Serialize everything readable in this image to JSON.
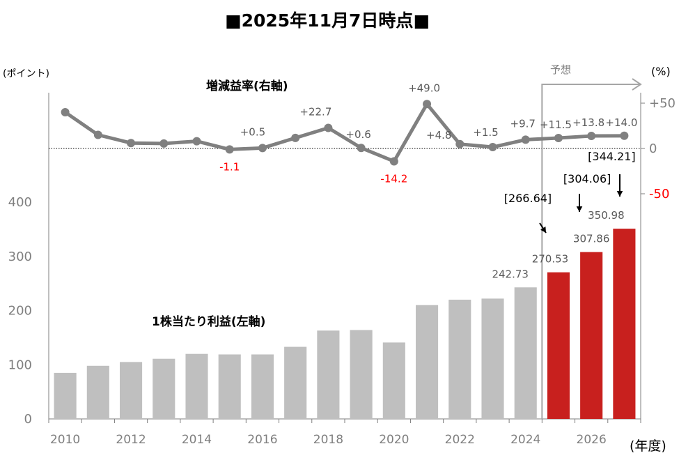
{
  "chart_data": {
    "type": "bar+line",
    "title": "■2025年11月7日時点■",
    "left_axis": {
      "unit": "(ポイント)",
      "ticks": [
        0,
        100,
        200,
        300,
        400
      ],
      "ylim": [
        0,
        400
      ]
    },
    "right_axis": {
      "unit": "(%)",
      "ticks": [
        "+50",
        "0",
        "-50"
      ],
      "ylim": [
        -50,
        50
      ]
    },
    "x_axis": {
      "unit": "(年度)",
      "tick_labels": [
        "2010",
        "2012",
        "2014",
        "2016",
        "2018",
        "2020",
        "2022",
        "2024",
        "2026"
      ]
    },
    "years": [
      2010,
      2011,
      2012,
      2013,
      2014,
      2015,
      2016,
      2017,
      2018,
      2019,
      2020,
      2021,
      2022,
      2023,
      2024,
      2025,
      2026,
      2027
    ],
    "eps_series": {
      "name": "1株当たり利益(左軸)",
      "values": [
        85,
        98,
        105,
        111,
        120,
        119,
        119,
        133,
        163,
        164,
        141,
        210,
        220,
        222,
        242.73,
        270.53,
        307.86,
        350.98
      ],
      "forecast_from": 2025
    },
    "growth_series": {
      "name": "増減益率(右軸)",
      "values": [
        40,
        15,
        6,
        5.5,
        8,
        -1.1,
        0.5,
        11.6,
        22.7,
        0.6,
        -14.2,
        49.0,
        4.8,
        1.5,
        9.7,
        11.5,
        13.8,
        14.0
      ]
    },
    "value_labels": [
      {
        "year": 2016,
        "series": "growth",
        "text": "+0.5",
        "color": "#595959"
      },
      {
        "year": 2015,
        "series": "growth",
        "text": "-1.1",
        "color": "#ff0000"
      },
      {
        "year": 2018,
        "series": "growth",
        "text": "+22.7",
        "color": "#595959"
      },
      {
        "year": 2019,
        "series": "growth",
        "text": "+0.6",
        "color": "#595959"
      },
      {
        "year": 2020,
        "series": "growth",
        "text": "-14.2",
        "color": "#ff0000"
      },
      {
        "year": 2021,
        "series": "growth",
        "text": "+49.0",
        "color": "#595959"
      },
      {
        "year": 2022,
        "series": "growth",
        "text": "+4.8",
        "color": "#595959"
      },
      {
        "year": 2023,
        "series": "growth",
        "text": "+1.5",
        "color": "#595959"
      },
      {
        "year": 2024,
        "series": "growth",
        "text": "+9.7",
        "color": "#595959"
      },
      {
        "year": 2025,
        "series": "growth",
        "text": "+11.5",
        "color": "#595959"
      },
      {
        "year": 2026,
        "series": "growth",
        "text": "+13.8",
        "color": "#595959"
      },
      {
        "year": 2027,
        "series": "growth",
        "text": "+14.0",
        "color": "#595959"
      },
      {
        "year": 2024,
        "series": "eps",
        "text": "242.73",
        "color": "#595959"
      },
      {
        "year": 2025,
        "series": "eps",
        "text": "270.53",
        "color": "#595959"
      },
      {
        "year": 2026,
        "series": "eps",
        "text": "307.86",
        "color": "#595959"
      },
      {
        "year": 2027,
        "series": "eps",
        "text": "350.98",
        "color": "#595959"
      }
    ],
    "previous_forecasts": [
      {
        "year": 2025,
        "text": "[266.64]"
      },
      {
        "year": 2026,
        "text": "[304.06]"
      },
      {
        "year": 2027,
        "text": "[344.21]"
      }
    ],
    "forecast_label": "予想",
    "colors": {
      "actual_bar": "#bfbfbf",
      "forecast_bar": "#c8201e",
      "line": "#808080",
      "negative_text": "#ff0000",
      "label_text": "#595959"
    }
  }
}
